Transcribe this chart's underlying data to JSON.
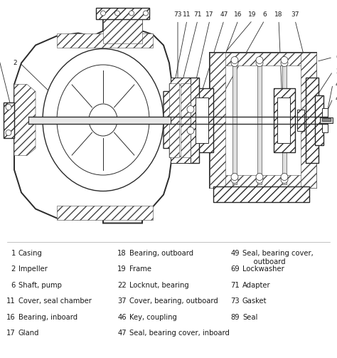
{
  "figsize": [
    4.74,
    5.03
  ],
  "dpi": 100,
  "bg_color": "#ffffff",
  "line_color": "#2a2a2a",
  "hatch_color": "#444444",
  "text_color": "#1a1a1a",
  "font_size_legend": 7.2,
  "font_size_callout": 6.5,
  "legend_items_col1": [
    [
      "1",
      "Casing"
    ],
    [
      "2",
      "Impeller"
    ],
    [
      "6",
      "Shaft, pump"
    ],
    [
      "11",
      "Cover, seal chamber"
    ],
    [
      "16",
      "Bearing, inboard"
    ],
    [
      "17",
      "Gland"
    ]
  ],
  "legend_items_col2": [
    [
      "18",
      "Bearing, outboard"
    ],
    [
      "19",
      "Frame"
    ],
    [
      "22",
      "Locknut, bearing"
    ],
    [
      "37",
      "Cover, bearing, outboard"
    ],
    [
      "46",
      "Key, coupling"
    ],
    [
      "47",
      "Seal, bearing cover, inboard"
    ]
  ],
  "legend_items_col3": [
    [
      "49",
      "Seal, bearing cover,\n     outboard"
    ],
    [
      "69",
      "Lockwasher"
    ],
    [
      "71",
      "Adapter"
    ],
    [
      "73",
      "Gasket"
    ],
    [
      "89",
      "Seal"
    ]
  ]
}
